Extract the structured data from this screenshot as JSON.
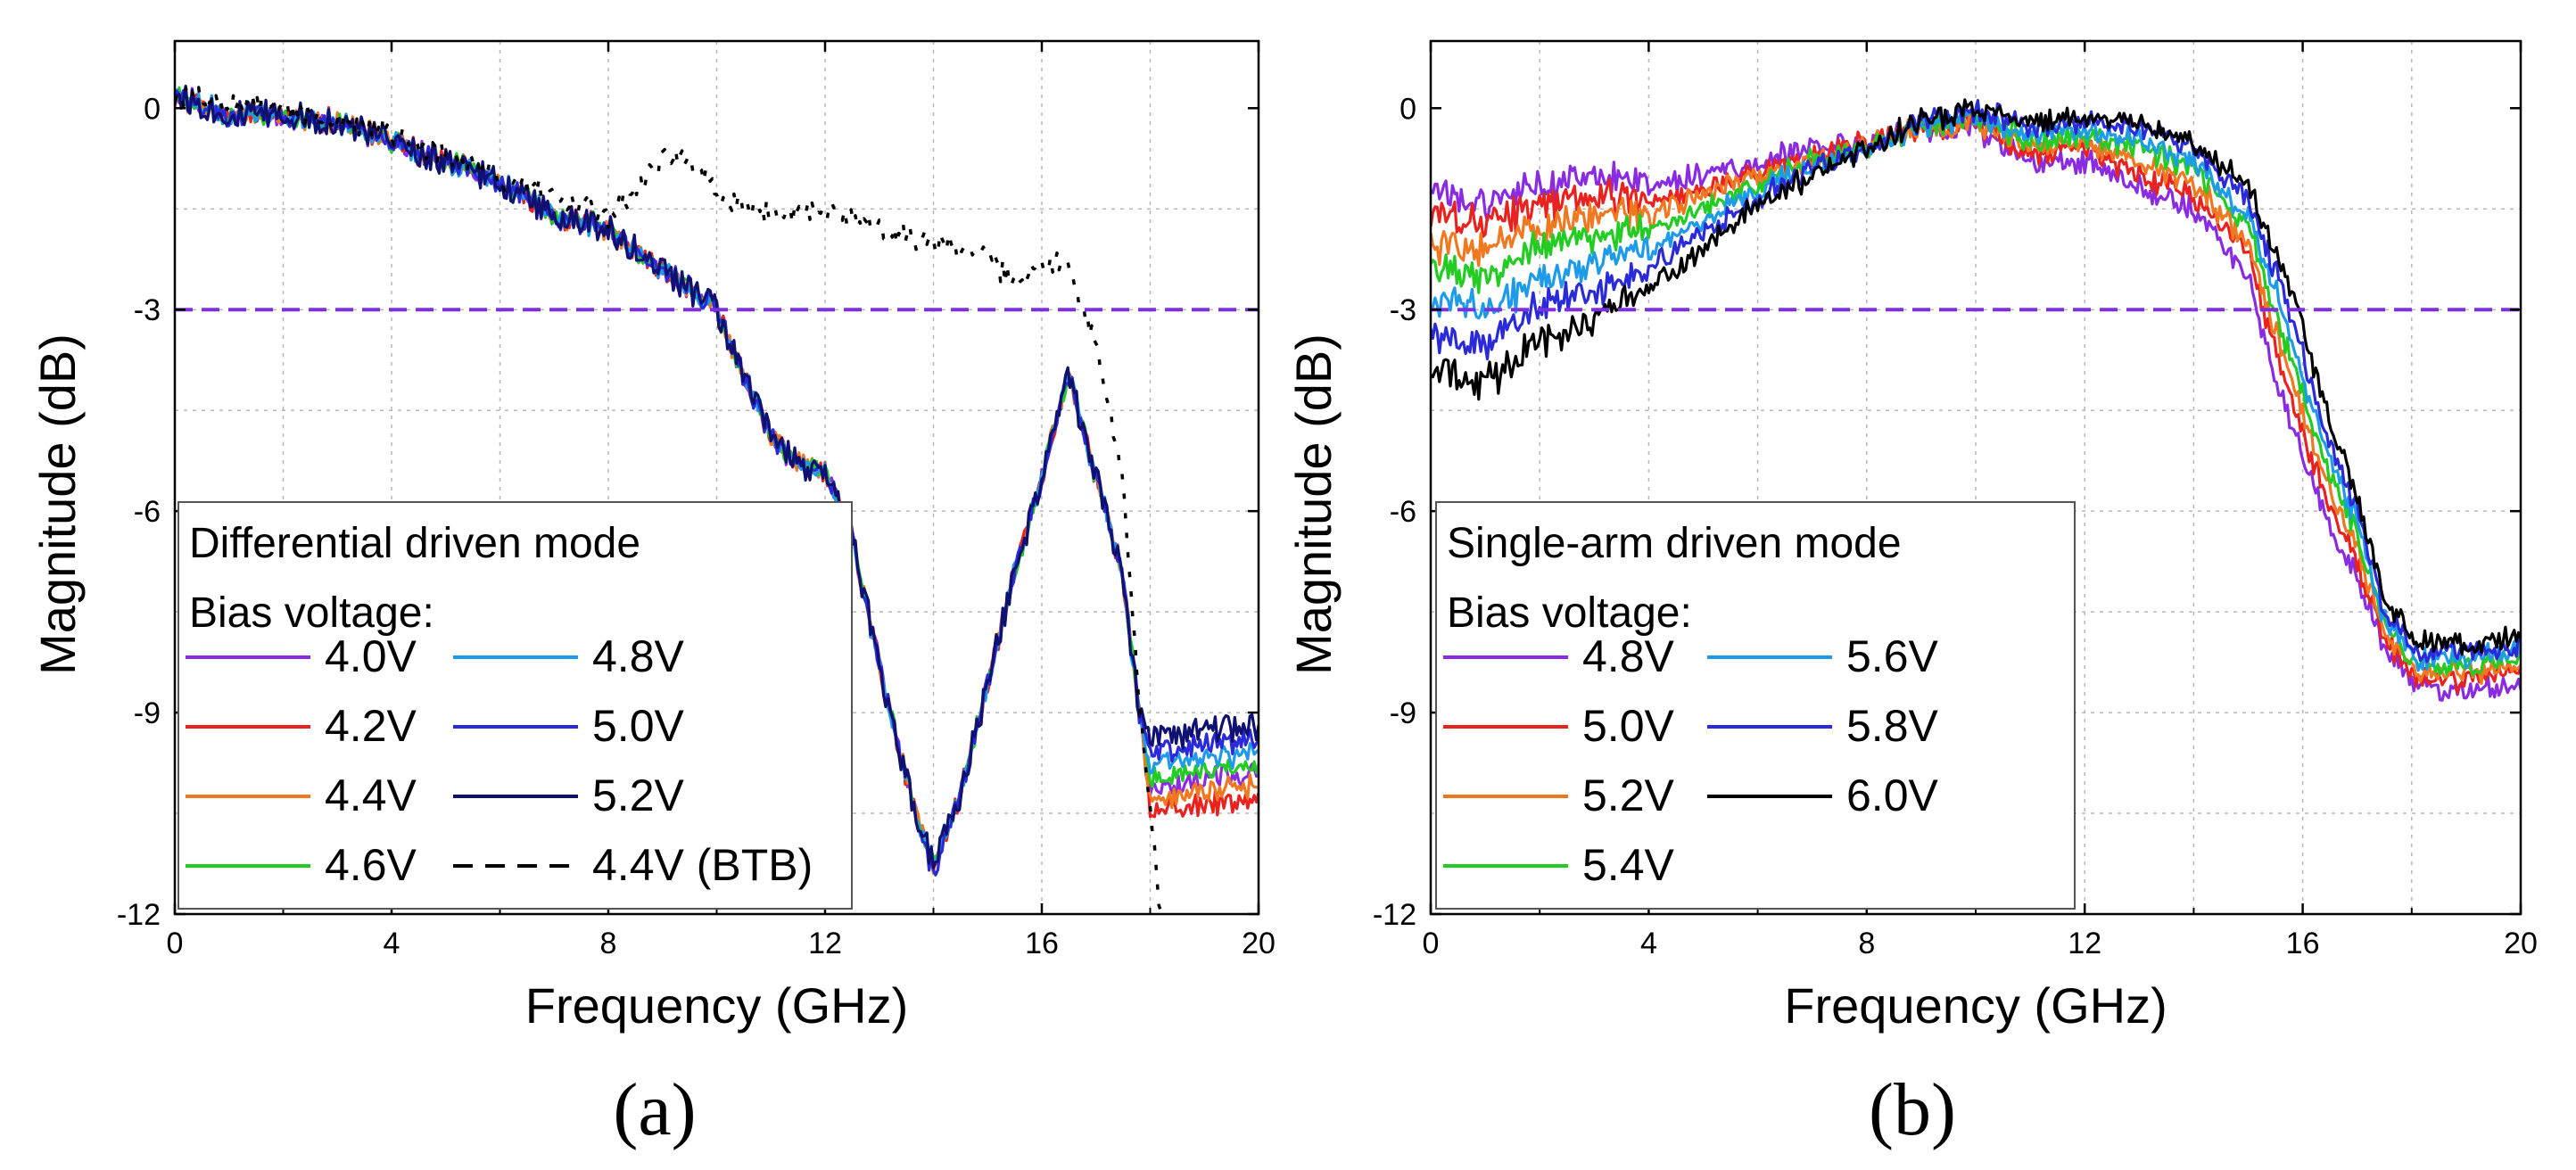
{
  "chart_data": [
    {
      "type": "line",
      "panel_id": "a",
      "caption": "(a)",
      "xlabel": "Frequency (GHz)",
      "ylabel": "Magnitude (dB)",
      "xlim": [
        0,
        20
      ],
      "ylim": [
        -12,
        1
      ],
      "xticks": [
        0,
        4,
        8,
        12,
        16,
        20
      ],
      "xtick_labels": [
        "0",
        "4",
        "8",
        "12",
        "16",
        "20"
      ],
      "yticks": [
        0,
        -3,
        -6,
        -9,
        -12
      ],
      "ytick_labels": [
        "0",
        "-3",
        "-6",
        "-9",
        "-12"
      ],
      "grid": true,
      "reference_line": {
        "y": -3,
        "color": "#7b2fe0",
        "style": "dashed"
      },
      "legend": {
        "placement": "bottom-left",
        "title_lines": [
          "Differential driven mode",
          "Bias voltage:"
        ],
        "columns": 2
      },
      "series": [
        {
          "name": "4.0V",
          "color": "#8a2be2",
          "style": "solid",
          "x": [
            0,
            1,
            2,
            3,
            4,
            5,
            6,
            7,
            8,
            9,
            10,
            10.5,
            11,
            11.5,
            12,
            12.5,
            13,
            13.5,
            14,
            14.5,
            15,
            15.5,
            16,
            16.5,
            17,
            17.5,
            17.8,
            18,
            19,
            20
          ],
          "y": [
            0.2,
            -0.1,
            -0.1,
            -0.2,
            -0.5,
            -0.8,
            -1.1,
            -1.6,
            -1.8,
            -2.4,
            -3.0,
            -4.0,
            -4.9,
            -5.3,
            -5.4,
            -6.4,
            -8.3,
            -10.0,
            -11.3,
            -10.2,
            -8.6,
            -6.9,
            -5.5,
            -4.0,
            -5.5,
            -7.0,
            -9.0,
            -10.2,
            -10.0,
            -9.9
          ]
        },
        {
          "name": "4.2V",
          "color": "#e8221f",
          "style": "solid",
          "x": [
            0,
            1,
            2,
            3,
            4,
            5,
            6,
            7,
            8,
            9,
            10,
            10.5,
            11,
            11.5,
            12,
            12.5,
            13,
            13.5,
            14,
            14.5,
            15,
            15.5,
            16,
            16.5,
            17,
            17.5,
            17.8,
            18,
            19,
            20
          ],
          "y": [
            0.2,
            -0.1,
            -0.1,
            -0.2,
            -0.5,
            -0.8,
            -1.1,
            -1.6,
            -1.8,
            -2.4,
            -3.0,
            -4.0,
            -4.9,
            -5.3,
            -5.4,
            -6.4,
            -8.3,
            -10.0,
            -11.3,
            -10.2,
            -8.6,
            -6.9,
            -5.5,
            -4.0,
            -5.5,
            -7.0,
            -9.0,
            -10.5,
            -10.4,
            -10.3
          ]
        },
        {
          "name": "4.4V",
          "color": "#f07820",
          "style": "solid",
          "x": [
            0,
            1,
            2,
            3,
            4,
            5,
            6,
            7,
            8,
            9,
            10,
            10.5,
            11,
            11.5,
            12,
            12.5,
            13,
            13.5,
            14,
            14.5,
            15,
            15.5,
            16,
            16.5,
            17,
            17.5,
            17.8,
            18,
            19,
            20
          ],
          "y": [
            0.2,
            -0.1,
            -0.1,
            -0.2,
            -0.5,
            -0.8,
            -1.1,
            -1.6,
            -1.8,
            -2.4,
            -3.0,
            -4.0,
            -4.9,
            -5.3,
            -5.4,
            -6.4,
            -8.3,
            -10.0,
            -11.3,
            -10.2,
            -8.6,
            -6.9,
            -5.5,
            -4.0,
            -5.5,
            -7.0,
            -9.0,
            -10.3,
            -10.2,
            -10.1
          ]
        },
        {
          "name": "4.6V",
          "color": "#22cc22",
          "style": "solid",
          "x": [
            0,
            1,
            2,
            3,
            4,
            5,
            6,
            7,
            8,
            9,
            10,
            10.5,
            11,
            11.5,
            12,
            12.5,
            13,
            13.5,
            14,
            14.5,
            15,
            15.5,
            16,
            16.5,
            17,
            17.5,
            17.8,
            18,
            19,
            20
          ],
          "y": [
            0.2,
            -0.1,
            -0.1,
            -0.2,
            -0.5,
            -0.8,
            -1.1,
            -1.6,
            -1.8,
            -2.4,
            -3.0,
            -4.0,
            -4.9,
            -5.3,
            -5.4,
            -6.4,
            -8.3,
            -10.0,
            -11.3,
            -10.2,
            -8.6,
            -6.9,
            -5.5,
            -4.0,
            -5.5,
            -7.0,
            -9.0,
            -10.0,
            -9.9,
            -9.8
          ]
        },
        {
          "name": "4.8V",
          "color": "#1e9be8",
          "style": "solid",
          "x": [
            0,
            1,
            2,
            3,
            4,
            5,
            6,
            7,
            8,
            9,
            10,
            10.5,
            11,
            11.5,
            12,
            12.5,
            13,
            13.5,
            14,
            14.5,
            15,
            15.5,
            16,
            16.5,
            17,
            17.5,
            17.8,
            18,
            19,
            20
          ],
          "y": [
            0.2,
            -0.1,
            -0.1,
            -0.2,
            -0.5,
            -0.8,
            -1.1,
            -1.6,
            -1.8,
            -2.4,
            -3.0,
            -4.0,
            -4.9,
            -5.3,
            -5.4,
            -6.4,
            -8.3,
            -10.0,
            -11.3,
            -10.2,
            -8.6,
            -6.9,
            -5.5,
            -4.0,
            -5.5,
            -7.0,
            -9.0,
            -9.8,
            -9.7,
            -9.6
          ]
        },
        {
          "name": "5.0V",
          "color": "#2a2ad8",
          "style": "solid",
          "x": [
            0,
            1,
            2,
            3,
            4,
            5,
            6,
            7,
            8,
            9,
            10,
            10.5,
            11,
            11.5,
            12,
            12.5,
            13,
            13.5,
            14,
            14.5,
            15,
            15.5,
            16,
            16.5,
            17,
            17.5,
            17.8,
            18,
            19,
            20
          ],
          "y": [
            0.2,
            -0.1,
            -0.1,
            -0.2,
            -0.5,
            -0.8,
            -1.1,
            -1.6,
            -1.8,
            -2.4,
            -3.0,
            -4.0,
            -4.9,
            -5.3,
            -5.4,
            -6.4,
            -8.3,
            -10.0,
            -11.4,
            -10.2,
            -8.6,
            -6.9,
            -5.5,
            -4.0,
            -5.5,
            -7.0,
            -9.0,
            -9.6,
            -9.5,
            -9.4
          ]
        },
        {
          "name": "5.2V",
          "color": "#101070",
          "style": "solid",
          "x": [
            0,
            1,
            2,
            3,
            4,
            5,
            6,
            7,
            8,
            9,
            10,
            10.5,
            11,
            11.5,
            12,
            12.5,
            13,
            13.5,
            14,
            14.5,
            15,
            15.5,
            16,
            16.5,
            17,
            17.5,
            17.8,
            18,
            19,
            20
          ],
          "y": [
            0.2,
            -0.1,
            -0.1,
            -0.2,
            -0.5,
            -0.8,
            -1.1,
            -1.6,
            -1.8,
            -2.4,
            -3.0,
            -4.0,
            -4.9,
            -5.3,
            -5.4,
            -6.4,
            -8.3,
            -10.0,
            -11.3,
            -10.2,
            -8.6,
            -6.9,
            -5.5,
            -4.0,
            -5.5,
            -7.0,
            -9.0,
            -9.4,
            -9.3,
            -9.2
          ]
        },
        {
          "name": "4.4V (BTB)",
          "color": "#000000",
          "style": "dashed",
          "x": [
            0,
            2,
            4,
            6,
            8,
            8.5,
            9,
            9.5,
            10,
            11,
            12,
            13,
            14,
            15,
            15.5,
            16,
            16.5,
            17,
            17.5,
            17.8,
            18.2
          ],
          "y": [
            0.2,
            0,
            -0.4,
            -1.0,
            -1.6,
            -1.2,
            -0.8,
            -0.7,
            -1.3,
            -1.6,
            -1.5,
            -1.8,
            -2.0,
            -2.2,
            -2.6,
            -2.4,
            -2.3,
            -3.6,
            -5.5,
            -9.0,
            -12.0
          ]
        }
      ]
    },
    {
      "type": "line",
      "panel_id": "b",
      "caption": "(b)",
      "xlabel": "Frequency (GHz)",
      "ylabel": "Magnitude (dB)",
      "xlim": [
        0,
        20
      ],
      "ylim": [
        -12,
        1
      ],
      "xticks": [
        0,
        4,
        8,
        12,
        16,
        20
      ],
      "xtick_labels": [
        "0",
        "4",
        "8",
        "12",
        "16",
        "20"
      ],
      "yticks": [
        0,
        -3,
        -6,
        -9,
        -12
      ],
      "ytick_labels": [
        "0",
        "-3",
        "-6",
        "-9",
        "-12"
      ],
      "grid": true,
      "reference_line": {
        "y": -3,
        "color": "#7b2fe0",
        "style": "dashed"
      },
      "legend": {
        "placement": "bottom-left",
        "title_lines": [
          "Single-arm driven mode",
          "Bias voltage:"
        ],
        "columns": 2
      },
      "series": [
        {
          "name": "4.8V",
          "color": "#8a2be2",
          "style": "solid",
          "x": [
            0,
            1,
            2,
            3,
            4,
            5,
            6,
            7,
            8,
            9,
            10,
            11,
            12,
            13,
            14,
            15,
            15.5,
            16,
            16.5,
            17,
            17.5,
            18,
            19,
            20
          ],
          "y": [
            -1.3,
            -1.4,
            -1.2,
            -1.0,
            -1.2,
            -1.0,
            -0.8,
            -0.6,
            -0.5,
            -0.3,
            -0.3,
            -0.8,
            -0.8,
            -1.2,
            -1.5,
            -2.5,
            -4.0,
            -5.2,
            -6.2,
            -7.0,
            -8.0,
            -8.6,
            -8.7,
            -8.6
          ]
        },
        {
          "name": "5.0V",
          "color": "#e8221f",
          "style": "solid",
          "x": [
            0,
            1,
            2,
            3,
            4,
            5,
            6,
            7,
            8,
            9,
            10,
            11,
            12,
            13,
            14,
            15,
            15.5,
            16,
            16.5,
            17,
            17.5,
            18,
            19,
            20
          ],
          "y": [
            -1.6,
            -1.7,
            -1.5,
            -1.3,
            -1.4,
            -1.2,
            -0.9,
            -0.7,
            -0.5,
            -0.3,
            -0.2,
            -0.7,
            -0.6,
            -1.0,
            -1.3,
            -2.2,
            -3.6,
            -4.9,
            -5.9,
            -6.8,
            -7.9,
            -8.5,
            -8.5,
            -8.4
          ]
        },
        {
          "name": "5.2V",
          "color": "#f07820",
          "style": "solid",
          "x": [
            0,
            1,
            2,
            3,
            4,
            5,
            6,
            7,
            8,
            9,
            10,
            11,
            12,
            13,
            14,
            15,
            15.5,
            16,
            16.5,
            17,
            17.5,
            18,
            19,
            20
          ],
          "y": [
            -2.0,
            -2.1,
            -1.8,
            -1.6,
            -1.6,
            -1.3,
            -1.0,
            -0.8,
            -0.6,
            -0.3,
            -0.2,
            -0.6,
            -0.5,
            -0.8,
            -1.1,
            -2.0,
            -3.3,
            -4.6,
            -5.6,
            -6.6,
            -7.8,
            -8.4,
            -8.4,
            -8.3
          ]
        },
        {
          "name": "5.4V",
          "color": "#22cc22",
          "style": "solid",
          "x": [
            0,
            1,
            2,
            3,
            4,
            5,
            6,
            7,
            8,
            9,
            10,
            11,
            12,
            13,
            14,
            15,
            15.5,
            16,
            16.5,
            17,
            17.5,
            18,
            19,
            20
          ],
          "y": [
            -2.4,
            -2.5,
            -2.1,
            -1.9,
            -1.8,
            -1.5,
            -1.1,
            -0.8,
            -0.6,
            -0.3,
            -0.1,
            -0.5,
            -0.4,
            -0.6,
            -0.9,
            -1.8,
            -3.0,
            -4.3,
            -5.4,
            -6.4,
            -7.7,
            -8.3,
            -8.3,
            -8.2
          ]
        },
        {
          "name": "5.6V",
          "color": "#1e9be8",
          "style": "solid",
          "x": [
            0,
            1,
            2,
            3,
            4,
            5,
            6,
            7,
            8,
            9,
            10,
            11,
            12,
            13,
            14,
            15,
            15.5,
            16,
            16.5,
            17,
            17.5,
            18,
            19,
            20
          ],
          "y": [
            -2.9,
            -3.0,
            -2.6,
            -2.3,
            -2.1,
            -1.7,
            -1.2,
            -0.9,
            -0.6,
            -0.3,
            -0.1,
            -0.4,
            -0.3,
            -0.5,
            -0.8,
            -1.6,
            -2.7,
            -4.0,
            -5.2,
            -6.2,
            -7.6,
            -8.2,
            -8.2,
            -8.1
          ]
        },
        {
          "name": "5.8V",
          "color": "#2a2ad8",
          "style": "solid",
          "x": [
            0,
            1,
            2,
            3,
            4,
            5,
            6,
            7,
            8,
            9,
            10,
            11,
            12,
            13,
            14,
            15,
            15.5,
            16,
            16.5,
            17,
            17.5,
            18,
            19,
            20
          ],
          "y": [
            -3.4,
            -3.5,
            -3.0,
            -2.7,
            -2.4,
            -1.9,
            -1.3,
            -0.9,
            -0.6,
            -0.2,
            0.0,
            -0.3,
            -0.2,
            -0.3,
            -0.6,
            -1.4,
            -2.4,
            -3.7,
            -5.0,
            -6.0,
            -7.5,
            -8.1,
            -8.1,
            -8.0
          ]
        },
        {
          "name": "6.0V",
          "color": "#000000",
          "style": "solid",
          "x": [
            0,
            1,
            2,
            3,
            4,
            5,
            6,
            7,
            8,
            9,
            10,
            11,
            12,
            13,
            14,
            15,
            15.5,
            16,
            16.5,
            17,
            17.5,
            18,
            19,
            20
          ],
          "y": [
            -3.9,
            -4.1,
            -3.5,
            -3.1,
            -2.7,
            -2.1,
            -1.4,
            -1.0,
            -0.6,
            -0.2,
            0.0,
            -0.2,
            -0.1,
            -0.2,
            -0.5,
            -1.2,
            -2.1,
            -3.3,
            -4.6,
            -5.8,
            -7.3,
            -7.9,
            -8.0,
            -7.9
          ]
        }
      ]
    }
  ]
}
